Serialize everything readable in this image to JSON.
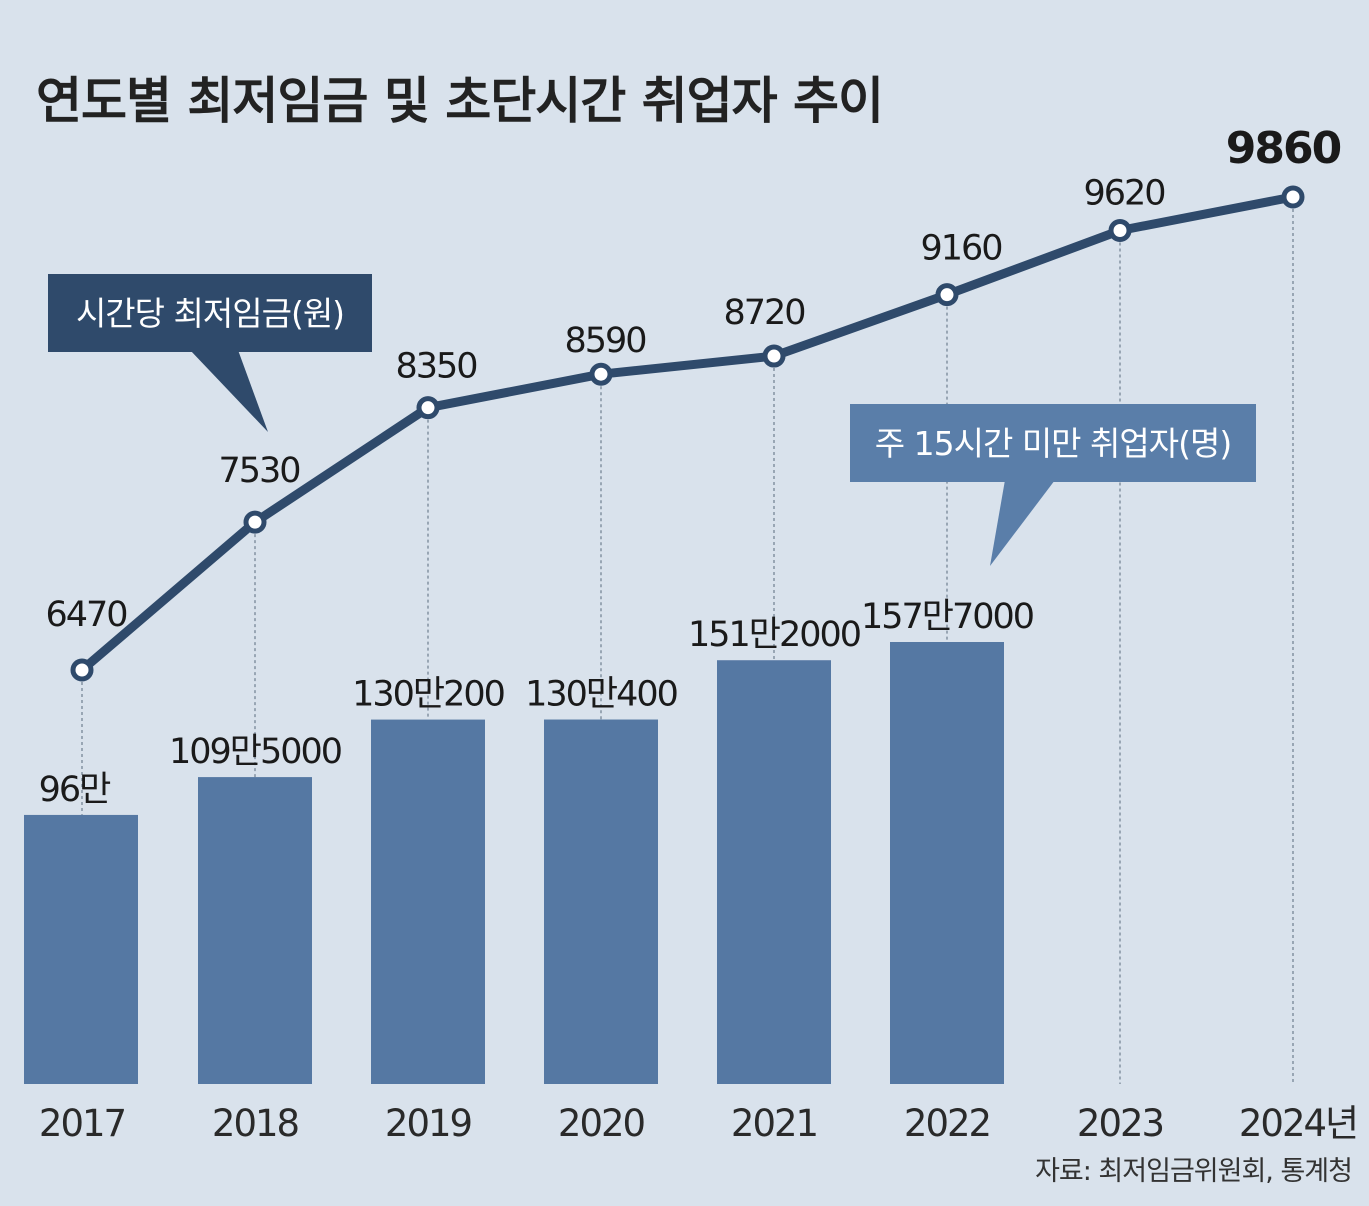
{
  "title": "연도별 최저임금 및 초단시간 취업자 추이",
  "source": "자료: 최저임금위원회, 통계청",
  "callouts": {
    "wage": "시간당 최저임금(원)",
    "workers": "주 15시간 미만 취업자(명)"
  },
  "colors": {
    "background": "#d9e2ec",
    "bar": "#5578a3",
    "line": "#2f4a6b",
    "callout_wage": "#2f4a6b",
    "callout_workers": "#5a7ea9"
  },
  "chart_data": {
    "type": "bar+line",
    "title": "연도별 최저임금 및 초단시간 취업자 추이",
    "categories": [
      "2017",
      "2018",
      "2019",
      "2020",
      "2021",
      "2022",
      "2023",
      "2024년"
    ],
    "series": [
      {
        "name": "주 15시간 미만 취업자(명)",
        "type": "bar",
        "values": [
          960000,
          1095000,
          1300200,
          1300400,
          1512000,
          1577000,
          null,
          null
        ],
        "labels": [
          "96만",
          "109만5000",
          "130만200",
          "130만400",
          "151만2000",
          "157만7000",
          "",
          ""
        ]
      },
      {
        "name": "시간당 최저임금(원)",
        "type": "line",
        "values": [
          6470,
          7530,
          8350,
          8590,
          8720,
          9160,
          9620,
          9860
        ],
        "labels": [
          "6470",
          "7530",
          "8350",
          "8590",
          "8720",
          "9160",
          "9620",
          "9860"
        ]
      }
    ],
    "xlabel": "",
    "ylabel": ""
  }
}
